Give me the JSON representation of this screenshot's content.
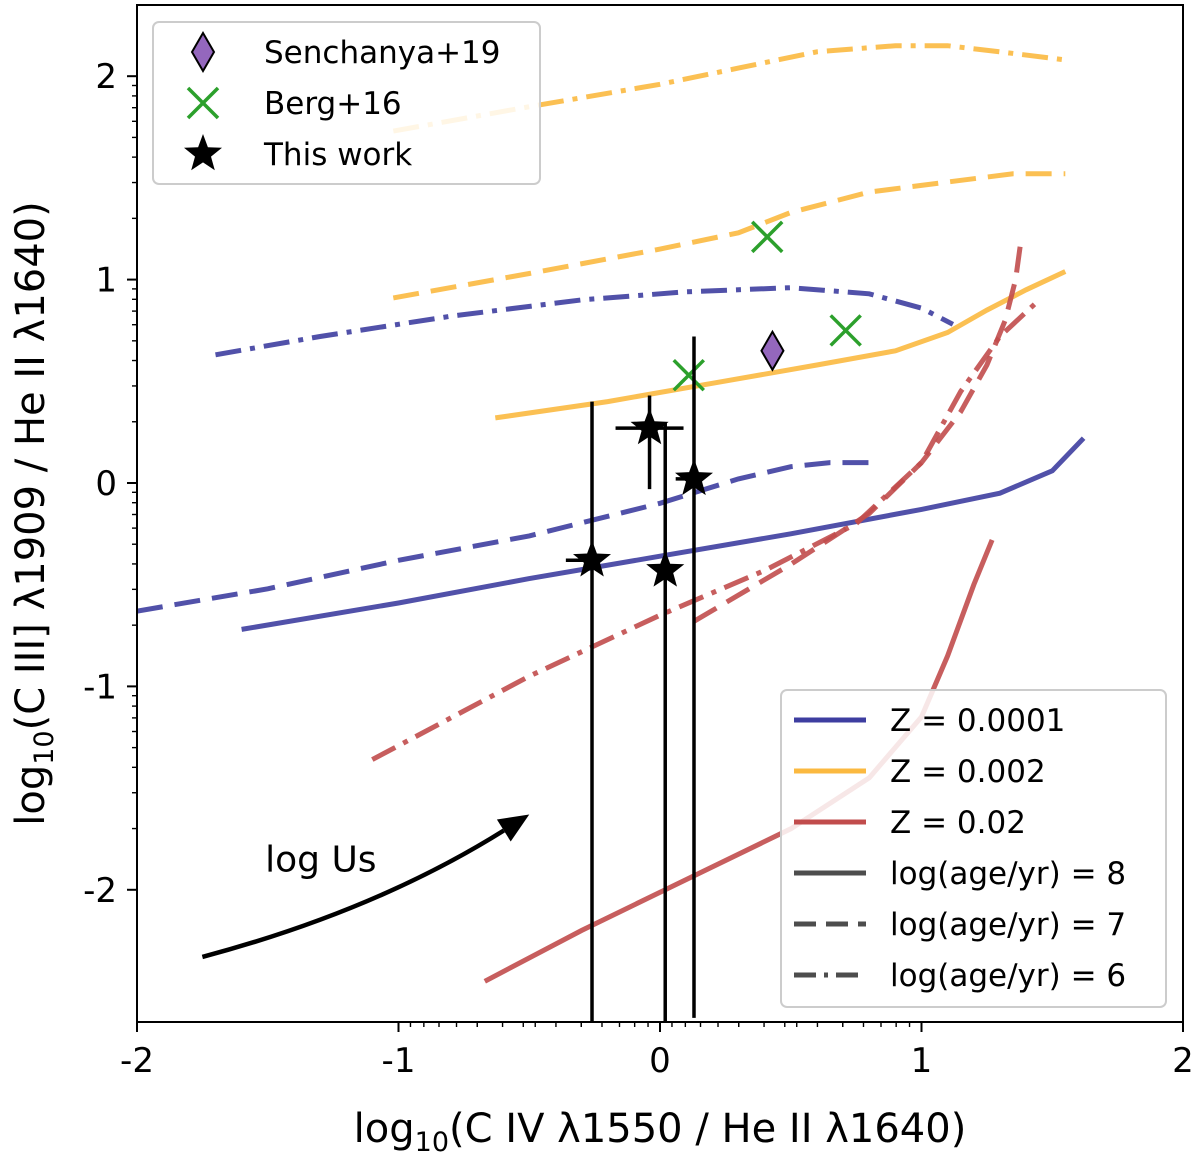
{
  "chart_data": {
    "type": "line",
    "title": "",
    "xlabel": {
      "pre": "log",
      "sub": "10",
      "post": "(C IV λ1550 / He II λ1640)"
    },
    "ylabel": {
      "pre": "log",
      "sub": "10",
      "post": "(C III] λ1909 / He II λ1640)"
    },
    "xlim": [
      -2,
      2
    ],
    "ylim": [
      -2.65,
      2.35
    ],
    "xticks": [
      {
        "v": -2,
        "label": "-2"
      },
      {
        "v": -1,
        "label": "-1"
      },
      {
        "v": 0,
        "label": "0"
      },
      {
        "v": 1,
        "label": "1"
      },
      {
        "v": 2,
        "label": "2"
      }
    ],
    "yticks": [
      {
        "v": -2,
        "label": "-2"
      },
      {
        "v": -1,
        "label": "-1"
      },
      {
        "v": 0,
        "label": "0"
      },
      {
        "v": 1,
        "label": "1"
      },
      {
        "v": 2,
        "label": "2"
      }
    ],
    "grid": false,
    "colors": {
      "Z1": "#3e3ea0",
      "Z2": "#fbb940",
      "Z3": "#c14c4c",
      "black": "#000000",
      "green": "#2ca02c",
      "purple": "#9467bd",
      "gray": "#4d4d4d"
    },
    "series": [
      {
        "metal": "Z1",
        "age": 8,
        "x": [
          -1.6,
          -1.0,
          -0.5,
          0.0,
          0.5,
          1.0,
          1.3,
          1.5,
          1.62
        ],
        "y": [
          -0.72,
          -0.59,
          -0.47,
          -0.36,
          -0.25,
          -0.13,
          -0.05,
          0.06,
          0.22
        ]
      },
      {
        "metal": "Z1",
        "age": 7,
        "x": [
          -2.0,
          -1.5,
          -1.0,
          -0.5,
          0.0,
          0.3,
          0.5,
          0.65,
          0.82
        ],
        "y": [
          -0.63,
          -0.52,
          -0.38,
          -0.26,
          -0.1,
          0.02,
          0.08,
          0.1,
          0.1
        ]
      },
      {
        "metal": "Z1",
        "age": 6,
        "x": [
          -1.7,
          -1.3,
          -0.8,
          -0.3,
          0.1,
          0.5,
          0.8,
          1.0,
          1.12
        ],
        "y": [
          0.63,
          0.72,
          0.82,
          0.9,
          0.94,
          0.96,
          0.93,
          0.86,
          0.78
        ]
      },
      {
        "metal": "Z2",
        "age": 8,
        "x": [
          -0.63,
          -0.2,
          0.2,
          0.6,
          0.9,
          1.1,
          1.25,
          1.4,
          1.55
        ],
        "y": [
          0.32,
          0.4,
          0.49,
          0.58,
          0.65,
          0.74,
          0.85,
          0.95,
          1.04
        ]
      },
      {
        "metal": "Z2",
        "age": 7,
        "x": [
          -1.02,
          -0.5,
          0.0,
          0.3,
          0.5,
          0.8,
          1.1,
          1.35,
          1.55
        ],
        "y": [
          0.91,
          1.03,
          1.15,
          1.23,
          1.33,
          1.43,
          1.48,
          1.52,
          1.52
        ]
      },
      {
        "metal": "Z2",
        "age": 6,
        "x": [
          -1.02,
          -0.5,
          0.0,
          0.3,
          0.6,
          0.9,
          1.1,
          1.3,
          1.55
        ],
        "y": [
          1.73,
          1.85,
          1.96,
          2.04,
          2.12,
          2.15,
          2.15,
          2.12,
          2.08
        ]
      },
      {
        "metal": "Z3",
        "age": 8,
        "x": [
          -0.67,
          -0.3,
          0.1,
          0.5,
          0.8,
          1.0,
          1.1,
          1.2,
          1.27
        ],
        "y": [
          -2.45,
          -2.2,
          -1.95,
          -1.7,
          -1.45,
          -1.15,
          -0.85,
          -0.5,
          -0.28
        ]
      },
      {
        "metal": "Z3",
        "age": 7,
        "x": [
          0.13,
          0.5,
          0.8,
          1.0,
          1.15,
          1.25,
          1.32,
          1.36,
          1.38
        ],
        "y": [
          -0.68,
          -0.4,
          -0.15,
          0.1,
          0.35,
          0.58,
          0.8,
          1.0,
          1.19
        ]
      },
      {
        "metal": "Z3",
        "age": 6,
        "x": [
          -1.1,
          -0.5,
          0.0,
          0.4,
          0.75,
          1.0,
          1.15,
          1.3,
          1.45
        ],
        "y": [
          -1.36,
          -0.95,
          -0.65,
          -0.43,
          -0.2,
          0.1,
          0.45,
          0.72,
          0.9
        ]
      }
    ],
    "senchanya": [
      {
        "x": 0.43,
        "y": 0.65
      }
    ],
    "berg": [
      {
        "x": 0.41,
        "y": 1.21
      },
      {
        "x": 0.11,
        "y": 0.53
      },
      {
        "x": 0.71,
        "y": 0.75
      }
    ],
    "this_work": [
      {
        "x": -0.04,
        "y": 0.27,
        "xerr": [
          0.13,
          0.13
        ],
        "yerr": [
          0.3,
          0.16
        ]
      },
      {
        "x": 0.13,
        "y": 0.02,
        "xerr": [
          0.07,
          0.0
        ],
        "yerr": [
          2.65,
          0.7
        ]
      },
      {
        "x": -0.26,
        "y": -0.38,
        "xerr": [
          0.1,
          0.0
        ],
        "yerr": [
          2.27,
          0.78
        ]
      },
      {
        "x": 0.02,
        "y": -0.43,
        "xerr": [
          0.0,
          0.0
        ],
        "yerr": [
          2.22,
          0.73
        ]
      }
    ],
    "legend_markers": {
      "position": "upper-left",
      "entries": [
        {
          "label": "Senchanya+19",
          "marker": "diamond"
        },
        {
          "label": "Berg+16",
          "marker": "x"
        },
        {
          "label": "This work",
          "marker": "star"
        }
      ]
    },
    "legend_lines": {
      "position": "lower-right",
      "entries": [
        {
          "label": "Z = 0.0001",
          "color": "#3e3ea0",
          "style": "solid"
        },
        {
          "label": "Z = 0.002",
          "color": "#fbb940",
          "style": "solid"
        },
        {
          "label": "Z = 0.02",
          "color": "#c14c4c",
          "style": "solid"
        },
        {
          "label": "log(age/yr) = 8",
          "color": "#4d4d4d",
          "style": "solid"
        },
        {
          "label": "log(age/yr) = 7",
          "color": "#4d4d4d",
          "style": "dashed"
        },
        {
          "label": "log(age/yr) = 6",
          "color": "#4d4d4d",
          "style": "dashdot"
        }
      ]
    },
    "annotation": {
      "text": "log Us",
      "arrow_from": [
        -1.75,
        -2.33
      ],
      "arrow_to": [
        -0.5,
        -1.63
      ]
    }
  }
}
